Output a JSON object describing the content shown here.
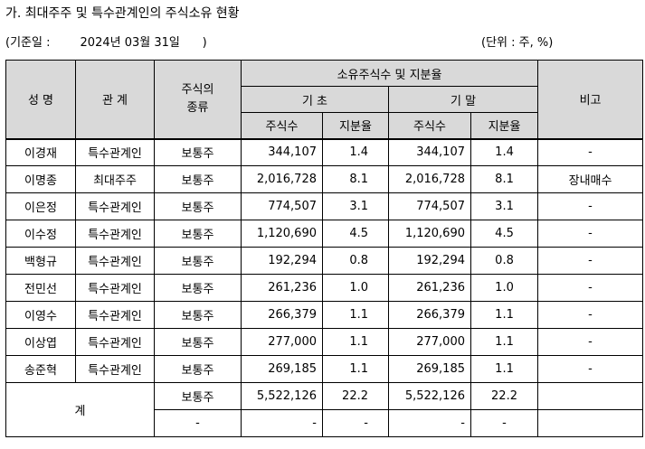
{
  "title": "가. 최대주주 및 특수관계인의 주식소유 현황",
  "basis_date": "(기준일 :        2024년 03월 31일      )",
  "unit": "(단위 : 주, %)",
  "headers": {
    "name": "성 명",
    "relation": "관 계",
    "stock_type": "주식의 종류",
    "holdings": "소유주식수 및 지분율",
    "begin": "기 초",
    "end": "기 말",
    "shares": "주식수",
    "ratio": "지분율",
    "note": "비고"
  },
  "rows": [
    {
      "name": "이경재",
      "relation": "특수관계인",
      "type": "보통주",
      "begin_shares": "344,107",
      "begin_ratio": "1.4",
      "end_shares": "344,107",
      "end_ratio": "1.4",
      "note": "-"
    },
    {
      "name": "이명종",
      "relation": "최대주주",
      "type": "보통주",
      "begin_shares": "2,016,728",
      "begin_ratio": "8.1",
      "end_shares": "2,016,728",
      "end_ratio": "8.1",
      "note": "장내매수"
    },
    {
      "name": "이은정",
      "relation": "특수관계인",
      "type": "보통주",
      "begin_shares": "774,507",
      "begin_ratio": "3.1",
      "end_shares": "774,507",
      "end_ratio": "3.1",
      "note": "-"
    },
    {
      "name": "이수정",
      "relation": "특수관계인",
      "type": "보통주",
      "begin_shares": "1,120,690",
      "begin_ratio": "4.5",
      "end_shares": "1,120,690",
      "end_ratio": "4.5",
      "note": "-"
    },
    {
      "name": "백형규",
      "relation": "특수관계인",
      "type": "보통주",
      "begin_shares": "192,294",
      "begin_ratio": "0.8",
      "end_shares": "192,294",
      "end_ratio": "0.8",
      "note": "-"
    },
    {
      "name": "전민선",
      "relation": "특수관계인",
      "type": "보통주",
      "begin_shares": "261,236",
      "begin_ratio": "1.0",
      "end_shares": "261,236",
      "end_ratio": "1.0",
      "note": "-"
    },
    {
      "name": "이영수",
      "relation": "특수관계인",
      "type": "보통주",
      "begin_shares": "266,379",
      "begin_ratio": "1.1",
      "end_shares": "266,379",
      "end_ratio": "1.1",
      "note": "-"
    },
    {
      "name": "이상엽",
      "relation": "특수관계인",
      "type": "보통주",
      "begin_shares": "277,000",
      "begin_ratio": "1.1",
      "end_shares": "277,000",
      "end_ratio": "1.1",
      "note": "-"
    },
    {
      "name": "송준혁",
      "relation": "특수관계인",
      "type": "보통주",
      "begin_shares": "269,185",
      "begin_ratio": "1.1",
      "end_shares": "269,185",
      "end_ratio": "1.1",
      "note": "-"
    }
  ],
  "total": {
    "label": "계",
    "row1": {
      "type": "보통주",
      "begin_shares": "5,522,126",
      "begin_ratio": "22.2",
      "end_shares": "5,522,126",
      "end_ratio": "22.2",
      "note": ""
    },
    "row2": {
      "type": "-",
      "begin_shares": "-",
      "begin_ratio": "-",
      "end_shares": "-",
      "end_ratio": "-",
      "note": ""
    }
  }
}
